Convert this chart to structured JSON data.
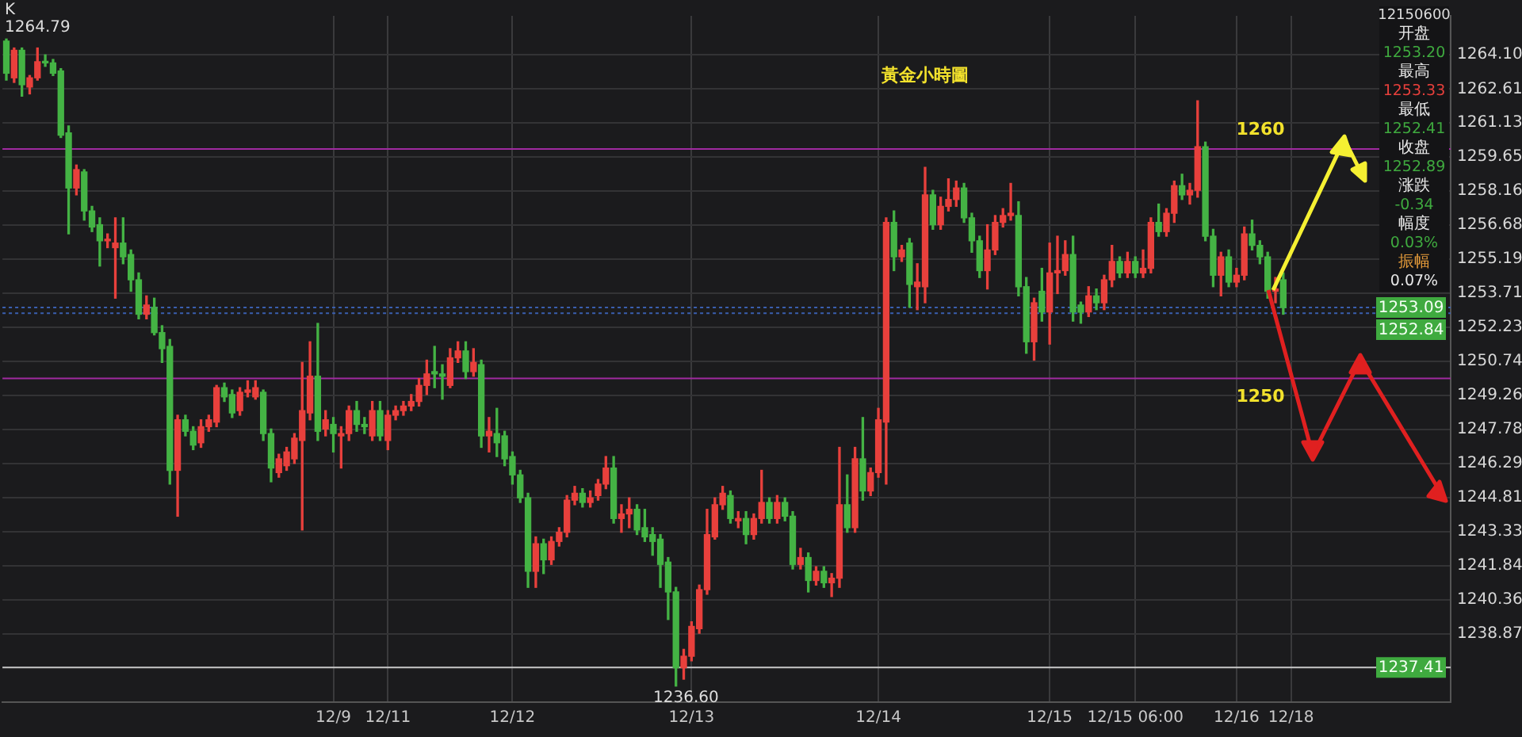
{
  "chart_data": {
    "type": "candlestick",
    "title": "黃金小時圖",
    "categories": [
      null,
      null,
      null,
      null,
      null,
      null,
      null,
      null,
      null,
      null,
      null,
      null,
      null,
      null,
      null,
      null,
      null,
      null,
      null,
      null,
      null,
      null,
      null,
      null,
      null,
      null,
      null,
      null,
      null,
      null,
      null,
      null,
      null,
      null,
      null,
      null,
      null,
      null,
      null,
      null,
      null,
      null,
      "12/9",
      null,
      null,
      null,
      null,
      null,
      null,
      "12/11",
      null,
      null,
      null,
      null,
      null,
      null,
      null,
      null,
      null,
      null,
      null,
      null,
      null,
      null,
      null,
      "12/12",
      null,
      null,
      null,
      null,
      null,
      null,
      null,
      null,
      null,
      null,
      null,
      null,
      null,
      null,
      null,
      null,
      null,
      null,
      null,
      null,
      null,
      null,
      "12/13",
      null,
      null,
      null,
      null,
      null,
      null,
      null,
      null,
      null,
      null,
      null,
      null,
      null,
      null,
      null,
      null,
      null,
      null,
      null,
      null,
      null,
      null,
      null,
      "12/14",
      null,
      null,
      null,
      null,
      null,
      null,
      null,
      null,
      null,
      null,
      null,
      null,
      null,
      null,
      null,
      null,
      null,
      null,
      null,
      null,
      null,
      "12/15",
      null,
      null,
      null,
      null,
      null,
      null,
      null,
      null,
      null,
      null,
      "12/15 06:00",
      null,
      null,
      null,
      null,
      null,
      null,
      null,
      null,
      null,
      null,
      null,
      null,
      "12/16",
      null,
      null,
      null,
      null,
      null,
      null,
      "12/18",
      null,
      null,
      null,
      null,
      null,
      null,
      null,
      null,
      null,
      null,
      null,
      null,
      null,
      null,
      null,
      null,
      null,
      null,
      null,
      null
    ],
    "ohlc": [
      [
        1264.7,
        1264.79,
        1263.0,
        1263.3
      ],
      [
        1263.1,
        1264.4,
        1262.9,
        1264.3
      ],
      [
        1264.3,
        1264.4,
        1262.3,
        1262.8
      ],
      [
        1262.7,
        1263.2,
        1262.4,
        1263.1
      ],
      [
        1263.1,
        1264.4,
        1263.0,
        1263.8
      ],
      [
        1263.8,
        1264.1,
        1263.6,
        1263.75
      ],
      [
        1263.75,
        1263.9,
        1263.2,
        1263.3
      ],
      [
        1263.4,
        1263.5,
        1260.5,
        1260.6
      ],
      [
        1260.7,
        1261.0,
        1256.3,
        1258.3
      ],
      [
        1258.3,
        1259.3,
        1258.0,
        1259.1
      ],
      [
        1259.0,
        1259.1,
        1256.9,
        1257.3
      ],
      [
        1257.3,
        1257.5,
        1256.4,
        1256.6
      ],
      [
        1256.7,
        1257.0,
        1254.9,
        1256.0
      ],
      [
        1256.0,
        1256.3,
        1255.7,
        1256.05
      ],
      [
        1255.7,
        1257.0,
        1253.5,
        1255.9
      ],
      [
        1255.9,
        1257.0,
        1255.0,
        1255.3
      ],
      [
        1255.4,
        1255.6,
        1253.8,
        1254.3
      ],
      [
        1254.3,
        1254.6,
        1252.6,
        1252.8
      ],
      [
        1252.8,
        1253.6,
        1252.6,
        1253.2
      ],
      [
        1253.1,
        1253.5,
        1251.9,
        1252.0
      ],
      [
        1252.0,
        1252.3,
        1250.7,
        1251.3
      ],
      [
        1251.4,
        1251.7,
        1245.4,
        1246.0
      ],
      [
        1246.0,
        1248.4,
        1244.0,
        1248.2
      ],
      [
        1248.2,
        1248.4,
        1247.5,
        1247.7
      ],
      [
        1247.7,
        1247.9,
        1246.9,
        1247.1
      ],
      [
        1247.2,
        1248.2,
        1247.0,
        1247.9
      ],
      [
        1247.9,
        1248.4,
        1247.7,
        1248.2
      ],
      [
        1248.1,
        1249.7,
        1247.9,
        1249.6
      ],
      [
        1249.6,
        1249.8,
        1249.0,
        1249.2
      ],
      [
        1249.3,
        1249.5,
        1248.3,
        1248.5
      ],
      [
        1248.6,
        1249.6,
        1248.4,
        1249.4
      ],
      [
        1249.4,
        1249.9,
        1249.2,
        1249.5
      ],
      [
        1249.2,
        1249.9,
        1249.1,
        1249.6
      ],
      [
        1249.4,
        1249.5,
        1247.3,
        1247.6
      ],
      [
        1247.6,
        1247.8,
        1245.5,
        1246.1
      ],
      [
        1245.9,
        1246.7,
        1245.7,
        1246.5
      ],
      [
        1246.2,
        1247.0,
        1246.0,
        1246.8
      ],
      [
        1246.5,
        1247.6,
        1246.3,
        1247.4
      ],
      [
        1247.3,
        1250.7,
        1243.4,
        1248.6
      ],
      [
        1248.5,
        1251.6,
        1248.2,
        1250.1
      ],
      [
        1250.1,
        1252.4,
        1247.3,
        1247.7
      ],
      [
        1247.8,
        1248.6,
        1247.5,
        1248.2
      ],
      [
        1248.0,
        1248.3,
        1246.8,
        1247.6
      ],
      [
        1247.5,
        1247.9,
        1246.1,
        1247.6
      ],
      [
        1247.6,
        1248.8,
        1247.3,
        1248.6
      ],
      [
        1248.6,
        1249.0,
        1247.7,
        1248.0
      ],
      [
        1248.0,
        1248.3,
        1247.6,
        1247.9
      ],
      [
        1247.5,
        1249.0,
        1247.3,
        1248.6
      ],
      [
        1248.6,
        1249.0,
        1247.3,
        1247.5
      ],
      [
        1247.3,
        1248.6,
        1246.9,
        1248.4
      ],
      [
        1248.4,
        1248.8,
        1248.2,
        1248.6
      ],
      [
        1248.6,
        1249.0,
        1248.4,
        1248.8
      ],
      [
        1248.8,
        1249.3,
        1248.6,
        1249.0
      ],
      [
        1249.0,
        1250.0,
        1248.8,
        1249.7
      ],
      [
        1249.7,
        1250.8,
        1249.3,
        1250.2
      ],
      [
        1250.3,
        1251.4,
        1249.6,
        1250.2
      ],
      [
        1250.2,
        1250.6,
        1249.1,
        1250.1
      ],
      [
        1249.7,
        1251.3,
        1249.6,
        1250.9
      ],
      [
        1250.9,
        1251.6,
        1250.7,
        1251.2
      ],
      [
        1251.2,
        1251.6,
        1250.0,
        1250.3
      ],
      [
        1250.3,
        1251.3,
        1250.1,
        1250.7
      ],
      [
        1250.6,
        1250.8,
        1247.0,
        1247.5
      ],
      [
        1247.5,
        1248.3,
        1246.8,
        1247.7
      ],
      [
        1247.6,
        1248.7,
        1246.6,
        1247.2
      ],
      [
        1247.5,
        1247.7,
        1246.2,
        1246.5
      ],
      [
        1246.6,
        1246.8,
        1245.4,
        1245.8
      ],
      [
        1245.8,
        1246.0,
        1244.6,
        1244.8
      ],
      [
        1244.8,
        1245.0,
        1240.9,
        1241.6
      ],
      [
        1241.6,
        1243.1,
        1240.9,
        1242.8
      ],
      [
        1242.8,
        1243.0,
        1241.5,
        1242.1
      ],
      [
        1242.1,
        1243.1,
        1241.9,
        1242.9
      ],
      [
        1242.9,
        1243.5,
        1242.7,
        1243.3
      ],
      [
        1243.3,
        1244.9,
        1243.1,
        1244.7
      ],
      [
        1244.7,
        1245.3,
        1244.5,
        1245.0
      ],
      [
        1245.0,
        1245.2,
        1244.4,
        1244.6
      ],
      [
        1244.6,
        1245.1,
        1244.4,
        1244.8
      ],
      [
        1244.9,
        1245.6,
        1244.7,
        1245.4
      ],
      [
        1245.4,
        1246.6,
        1245.2,
        1246.1
      ],
      [
        1246.1,
        1246.6,
        1243.7,
        1243.9
      ],
      [
        1243.9,
        1244.5,
        1243.3,
        1244.1
      ],
      [
        1244.1,
        1244.8,
        1243.5,
        1244.3
      ],
      [
        1244.3,
        1244.5,
        1243.2,
        1243.4
      ],
      [
        1243.5,
        1244.3,
        1242.9,
        1243.1
      ],
      [
        1243.2,
        1243.5,
        1242.3,
        1242.9
      ],
      [
        1243.0,
        1243.2,
        1240.9,
        1241.9
      ],
      [
        1242.0,
        1242.2,
        1239.5,
        1240.7
      ],
      [
        1240.7,
        1240.9,
        1236.6,
        1237.4
      ],
      [
        1237.4,
        1238.2,
        1236.9,
        1237.9
      ],
      [
        1237.9,
        1239.4,
        1237.7,
        1239.2
      ],
      [
        1239.1,
        1241.0,
        1238.9,
        1240.8
      ],
      [
        1240.8,
        1244.3,
        1240.6,
        1243.2
      ],
      [
        1243.1,
        1244.8,
        1243.0,
        1244.5
      ],
      [
        1244.5,
        1245.3,
        1244.3,
        1245.0
      ],
      [
        1244.9,
        1245.1,
        1243.7,
        1243.9
      ],
      [
        1243.8,
        1244.2,
        1243.5,
        1243.9
      ],
      [
        1243.9,
        1244.2,
        1242.8,
        1243.2
      ],
      [
        1243.2,
        1244.1,
        1243.0,
        1243.9
      ],
      [
        1243.9,
        1246.0,
        1243.7,
        1244.6
      ],
      [
        1244.6,
        1244.8,
        1243.7,
        1243.9
      ],
      [
        1243.9,
        1244.9,
        1243.7,
        1244.6
      ],
      [
        1244.6,
        1244.8,
        1243.8,
        1244.0
      ],
      [
        1244.0,
        1244.2,
        1241.7,
        1241.9
      ],
      [
        1241.9,
        1242.6,
        1241.7,
        1242.2
      ],
      [
        1242.2,
        1242.4,
        1240.7,
        1241.2
      ],
      [
        1241.2,
        1241.8,
        1241.0,
        1241.6
      ],
      [
        1241.6,
        1241.8,
        1240.9,
        1241.1
      ],
      [
        1241.1,
        1241.5,
        1240.5,
        1241.3
      ],
      [
        1241.3,
        1247.0,
        1240.9,
        1244.5
      ],
      [
        1244.5,
        1245.8,
        1243.3,
        1243.5
      ],
      [
        1243.5,
        1247.0,
        1243.3,
        1246.5
      ],
      [
        1246.5,
        1248.3,
        1244.7,
        1245.1
      ],
      [
        1245.1,
        1246.1,
        1244.9,
        1245.9
      ],
      [
        1245.9,
        1248.7,
        1245.7,
        1248.2
      ],
      [
        1248.1,
        1257.0,
        1245.4,
        1256.8
      ],
      [
        1256.8,
        1257.3,
        1254.7,
        1255.3
      ],
      [
        1255.3,
        1255.8,
        1255.1,
        1255.6
      ],
      [
        1255.9,
        1256.1,
        1253.1,
        1254.1
      ],
      [
        1254.0,
        1255.0,
        1253.0,
        1254.2
      ],
      [
        1254.0,
        1259.2,
        1253.3,
        1258.0
      ],
      [
        1258.0,
        1258.2,
        1256.5,
        1256.7
      ],
      [
        1256.7,
        1257.9,
        1256.5,
        1257.5
      ],
      [
        1257.5,
        1258.7,
        1257.3,
        1257.8
      ],
      [
        1257.8,
        1258.6,
        1257.5,
        1258.3
      ],
      [
        1258.3,
        1258.5,
        1256.8,
        1257.0
      ],
      [
        1257.0,
        1257.2,
        1255.5,
        1256.0
      ],
      [
        1256.0,
        1256.2,
        1254.4,
        1254.7
      ],
      [
        1254.7,
        1256.7,
        1253.9,
        1255.6
      ],
      [
        1255.6,
        1257.1,
        1255.4,
        1256.8
      ],
      [
        1256.8,
        1257.4,
        1256.6,
        1257.1
      ],
      [
        1257.1,
        1258.5,
        1256.9,
        1257.2
      ],
      [
        1257.1,
        1257.7,
        1253.6,
        1254.0
      ],
      [
        1254.0,
        1254.4,
        1251.1,
        1251.6
      ],
      [
        1251.6,
        1253.5,
        1250.8,
        1253.3
      ],
      [
        1253.8,
        1254.8,
        1252.5,
        1252.9
      ],
      [
        1252.9,
        1255.9,
        1251.5,
        1254.6
      ],
      [
        1254.6,
        1256.2,
        1253.7,
        1254.7
      ],
      [
        1254.7,
        1256.0,
        1254.5,
        1255.4
      ],
      [
        1255.4,
        1256.2,
        1252.5,
        1252.9
      ],
      [
        1253.2,
        1253.33,
        1252.41,
        1252.89
      ],
      [
        1252.9,
        1254.0,
        1252.7,
        1253.6
      ],
      [
        1253.6,
        1253.9,
        1253.0,
        1253.3
      ],
      [
        1253.3,
        1254.5,
        1253.0,
        1254.3
      ],
      [
        1254.3,
        1255.8,
        1254.0,
        1255.1
      ],
      [
        1255.1,
        1255.3,
        1254.4,
        1254.6
      ],
      [
        1254.6,
        1255.5,
        1254.4,
        1255.1
      ],
      [
        1255.1,
        1255.3,
        1254.4,
        1254.6
      ],
      [
        1254.6,
        1255.6,
        1254.4,
        1254.8
      ],
      [
        1254.8,
        1257.0,
        1254.6,
        1256.8
      ],
      [
        1256.8,
        1257.6,
        1256.2,
        1256.4
      ],
      [
        1256.4,
        1257.4,
        1256.2,
        1257.2
      ],
      [
        1257.2,
        1258.6,
        1256.8,
        1258.4
      ],
      [
        1258.4,
        1258.9,
        1257.8,
        1258.0
      ],
      [
        1258.0,
        1258.5,
        1257.6,
        1258.2
      ],
      [
        1258.2,
        1262.1,
        1257.9,
        1260.1
      ],
      [
        1260.1,
        1260.3,
        1256.0,
        1256.2
      ],
      [
        1256.2,
        1256.5,
        1254.0,
        1254.5
      ],
      [
        1254.5,
        1255.5,
        1253.6,
        1255.3
      ],
      [
        1255.3,
        1255.6,
        1254.0,
        1254.2
      ],
      [
        1254.2,
        1254.8,
        1254.0,
        1254.5
      ],
      [
        1254.5,
        1256.6,
        1254.3,
        1256.3
      ],
      [
        1256.3,
        1256.9,
        1255.6,
        1255.8
      ],
      [
        1255.8,
        1256.0,
        1255.0,
        1255.3
      ],
      [
        1255.3,
        1255.5,
        1253.5,
        1253.8
      ],
      [
        1253.8,
        1254.4,
        1253.3,
        1253.9
      ],
      [
        1254.3,
        1254.6,
        1252.8,
        1253.09
      ],
      null,
      null,
      null,
      null,
      null,
      null,
      null,
      null,
      null,
      null,
      null,
      null,
      null,
      null,
      null,
      null,
      null,
      null,
      null,
      null,
      null
    ],
    "colors": [
      "#44b344",
      "#e8403c",
      "#44b344",
      "#e8403c",
      "#e8403c",
      "#44b344",
      "#44b344",
      "#44b344",
      "#44b344",
      "#e8403c",
      "#44b344",
      "#44b344",
      "#44b344",
      "#e8403c",
      "#e8403c",
      "#44b344",
      "#44b344",
      "#44b344",
      "#e8403c",
      "#44b344",
      "#44b344",
      "#44b344",
      "#e8403c",
      "#44b344",
      "#44b344",
      "#e8403c",
      "#e8403c",
      "#e8403c",
      "#44b344",
      "#44b344",
      "#e8403c",
      "#e8403c",
      "#e8403c",
      "#44b344",
      "#44b344",
      "#e8403c",
      "#e8403c",
      "#e8403c",
      "#e8403c",
      "#e8403c",
      "#44b344",
      "#e8403c",
      "#44b344",
      "#e8403c",
      "#e8403c",
      "#44b344",
      "#44b344",
      "#e8403c",
      "#44b344",
      "#e8403c",
      "#e8403c",
      "#e8403c",
      "#e8403c",
      "#e8403c",
      "#e8403c",
      "#44b344",
      "#44b344",
      "#e8403c",
      "#e8403c",
      "#44b344",
      "#e8403c",
      "#44b344",
      "#e8403c",
      "#44b344",
      "#44b344",
      "#44b344",
      "#44b344",
      "#44b344",
      "#e8403c",
      "#44b344",
      "#e8403c",
      "#e8403c",
      "#e8403c",
      "#e8403c",
      "#44b344",
      "#e8403c",
      "#e8403c",
      "#e8403c",
      "#44b344",
      "#e8403c",
      "#e8403c",
      "#44b344",
      "#44b344",
      "#44b344",
      "#44b344",
      "#44b344",
      "#44b344",
      "#e8403c",
      "#e8403c",
      "#e8403c",
      "#e8403c",
      "#e8403c",
      "#e8403c",
      "#44b344",
      "#e8403c",
      "#44b344",
      "#e8403c",
      "#e8403c",
      "#44b344",
      "#e8403c",
      "#44b344",
      "#44b344",
      "#e8403c",
      "#44b344",
      "#e8403c",
      "#44b344",
      "#e8403c",
      "#e8403c",
      "#44b344",
      "#e8403c",
      "#44b344",
      "#e8403c",
      "#e8403c",
      "#e8403c",
      "#44b344",
      "#e8403c",
      "#44b344",
      "#e8403c",
      "#e8403c",
      "#44b344",
      "#e8403c",
      "#e8403c",
      "#e8403c",
      "#44b344",
      "#44b344",
      "#44b344",
      "#e8403c",
      "#e8403c",
      "#e8403c",
      "#e8403c",
      "#44b344",
      "#44b344",
      "#e8403c",
      "#44b344",
      "#e8403c",
      "#e8403c",
      "#e8403c",
      "#44b344",
      "#44b344",
      "#e8403c",
      "#44b344",
      "#e8403c",
      "#e8403c",
      "#44b344",
      "#e8403c",
      "#44b344",
      "#e8403c",
      "#e8403c",
      "#44b344",
      "#e8403c",
      "#e8403c",
      "#44b344",
      "#e8403c",
      "#e8403c",
      "#44b344",
      "#44b344",
      "#e8403c",
      "#44b344",
      "#e8403c",
      "#e8403c",
      "#44b344",
      "#44b344",
      "#44b344",
      "#e8403c",
      "#44b344",
      null,
      null,
      null,
      null,
      null,
      null,
      null,
      null,
      null,
      null,
      null,
      null,
      null,
      null,
      null,
      null,
      null,
      null,
      null,
      null,
      null
    ],
    "ylim": [
      1235.9,
      1265.8
    ],
    "yticks": [
      {
        "value": 1264.1,
        "label": "1264.10"
      },
      1262.61,
      1261.13,
      1259.65,
      1258.16,
      1256.68,
      1255.19,
      1253.71,
      1252.23,
      1250.74,
      1249.26,
      1247.78,
      1246.29,
      1244.81,
      1243.33,
      1241.84,
      1240.36,
      1238.87
    ],
    "grid": true,
    "ref_lines": [
      {
        "axis": "y",
        "value": 1260,
        "label": "1260",
        "color": "#a02aa0"
      },
      {
        "axis": "y",
        "value": 1250,
        "label": "1250",
        "color": "#a02aa0"
      },
      {
        "axis": "y",
        "value": 1253.09,
        "label": "1253.09",
        "color": "#3a5fb0",
        "line_style": "dotted"
      },
      {
        "axis": "y",
        "value": 1252.84,
        "label": "1252.84",
        "color": "#3a5fb0",
        "line_style": "dotted"
      },
      {
        "axis": "y",
        "value": 1237.41,
        "label": "1237.41",
        "color": "#c8c8c8"
      }
    ],
    "annotations": [
      "K",
      "1264.79",
      "1236.60",
      "12150600",
      "开盘",
      "1253.20",
      "最高",
      "1253.33",
      "最低",
      "1252.41",
      "收盘",
      "1252.89",
      "涨跌",
      "-0.34",
      "幅度",
      "0.03%",
      "振幅",
      "0.07%"
    ]
  }
}
